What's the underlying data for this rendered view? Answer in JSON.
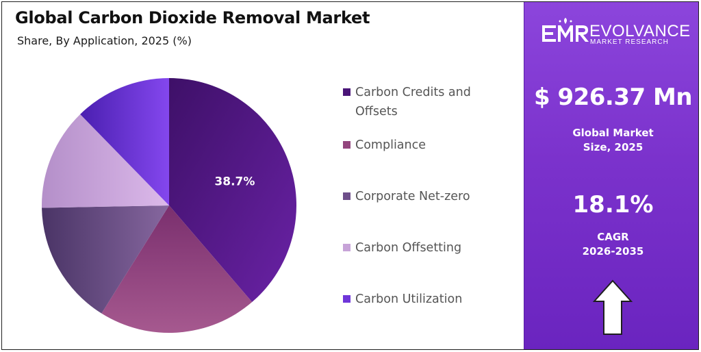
{
  "header": {
    "title": "Global Carbon Dioxide Removal Market",
    "subtitle": "Share, By Application, 2025 (%)"
  },
  "chart_data": {
    "type": "pie",
    "title": "Global Carbon Dioxide Removal Market",
    "subtitle": "Share, By Application, 2025 (%)",
    "start_angle_deg": 0,
    "direction": "clockwise",
    "legend_position": "right",
    "slices": [
      {
        "label": "Carbon Credits and Offsets",
        "value": 38.7,
        "color": "#5c1a8c",
        "data_label": "38.7%"
      },
      {
        "label": "Compliance",
        "value": 20.2,
        "color": "#93467e",
        "data_label": ""
      },
      {
        "label": "Corporate Net-zero",
        "value": 15.8,
        "color": "#6e4f8a",
        "data_label": ""
      },
      {
        "label": "Carbon Offsetting",
        "value": 13.0,
        "color": "#c7a3d8",
        "data_label": ""
      },
      {
        "label": "Carbon Utilization",
        "value": 12.3,
        "color": "#6f36d9",
        "data_label": ""
      }
    ]
  },
  "legend": {
    "items": [
      {
        "label": "Carbon Credits and Offsets",
        "color": "#5c1a8c"
      },
      {
        "label": "Compliance",
        "color": "#93467e"
      },
      {
        "label": "Corporate Net-zero",
        "color": "#6e4f8a"
      },
      {
        "label": "Carbon Offsetting",
        "color": "#c7a3d8"
      },
      {
        "label": "Carbon Utilization",
        "color": "#6f36d9"
      }
    ]
  },
  "panel": {
    "brand": {
      "name": "EVOLVANCE",
      "tagline": "MARKET RESEARCH"
    },
    "market_size": "$ 926.37 Mn",
    "market_size_label_line1": "Global Market",
    "market_size_label_line2": "Size, 2025",
    "cagr_value": "18.1%",
    "cagr_label_line1": "CAGR",
    "cagr_label_line2": "2026-2035",
    "accent_color": "#7b32cc"
  }
}
